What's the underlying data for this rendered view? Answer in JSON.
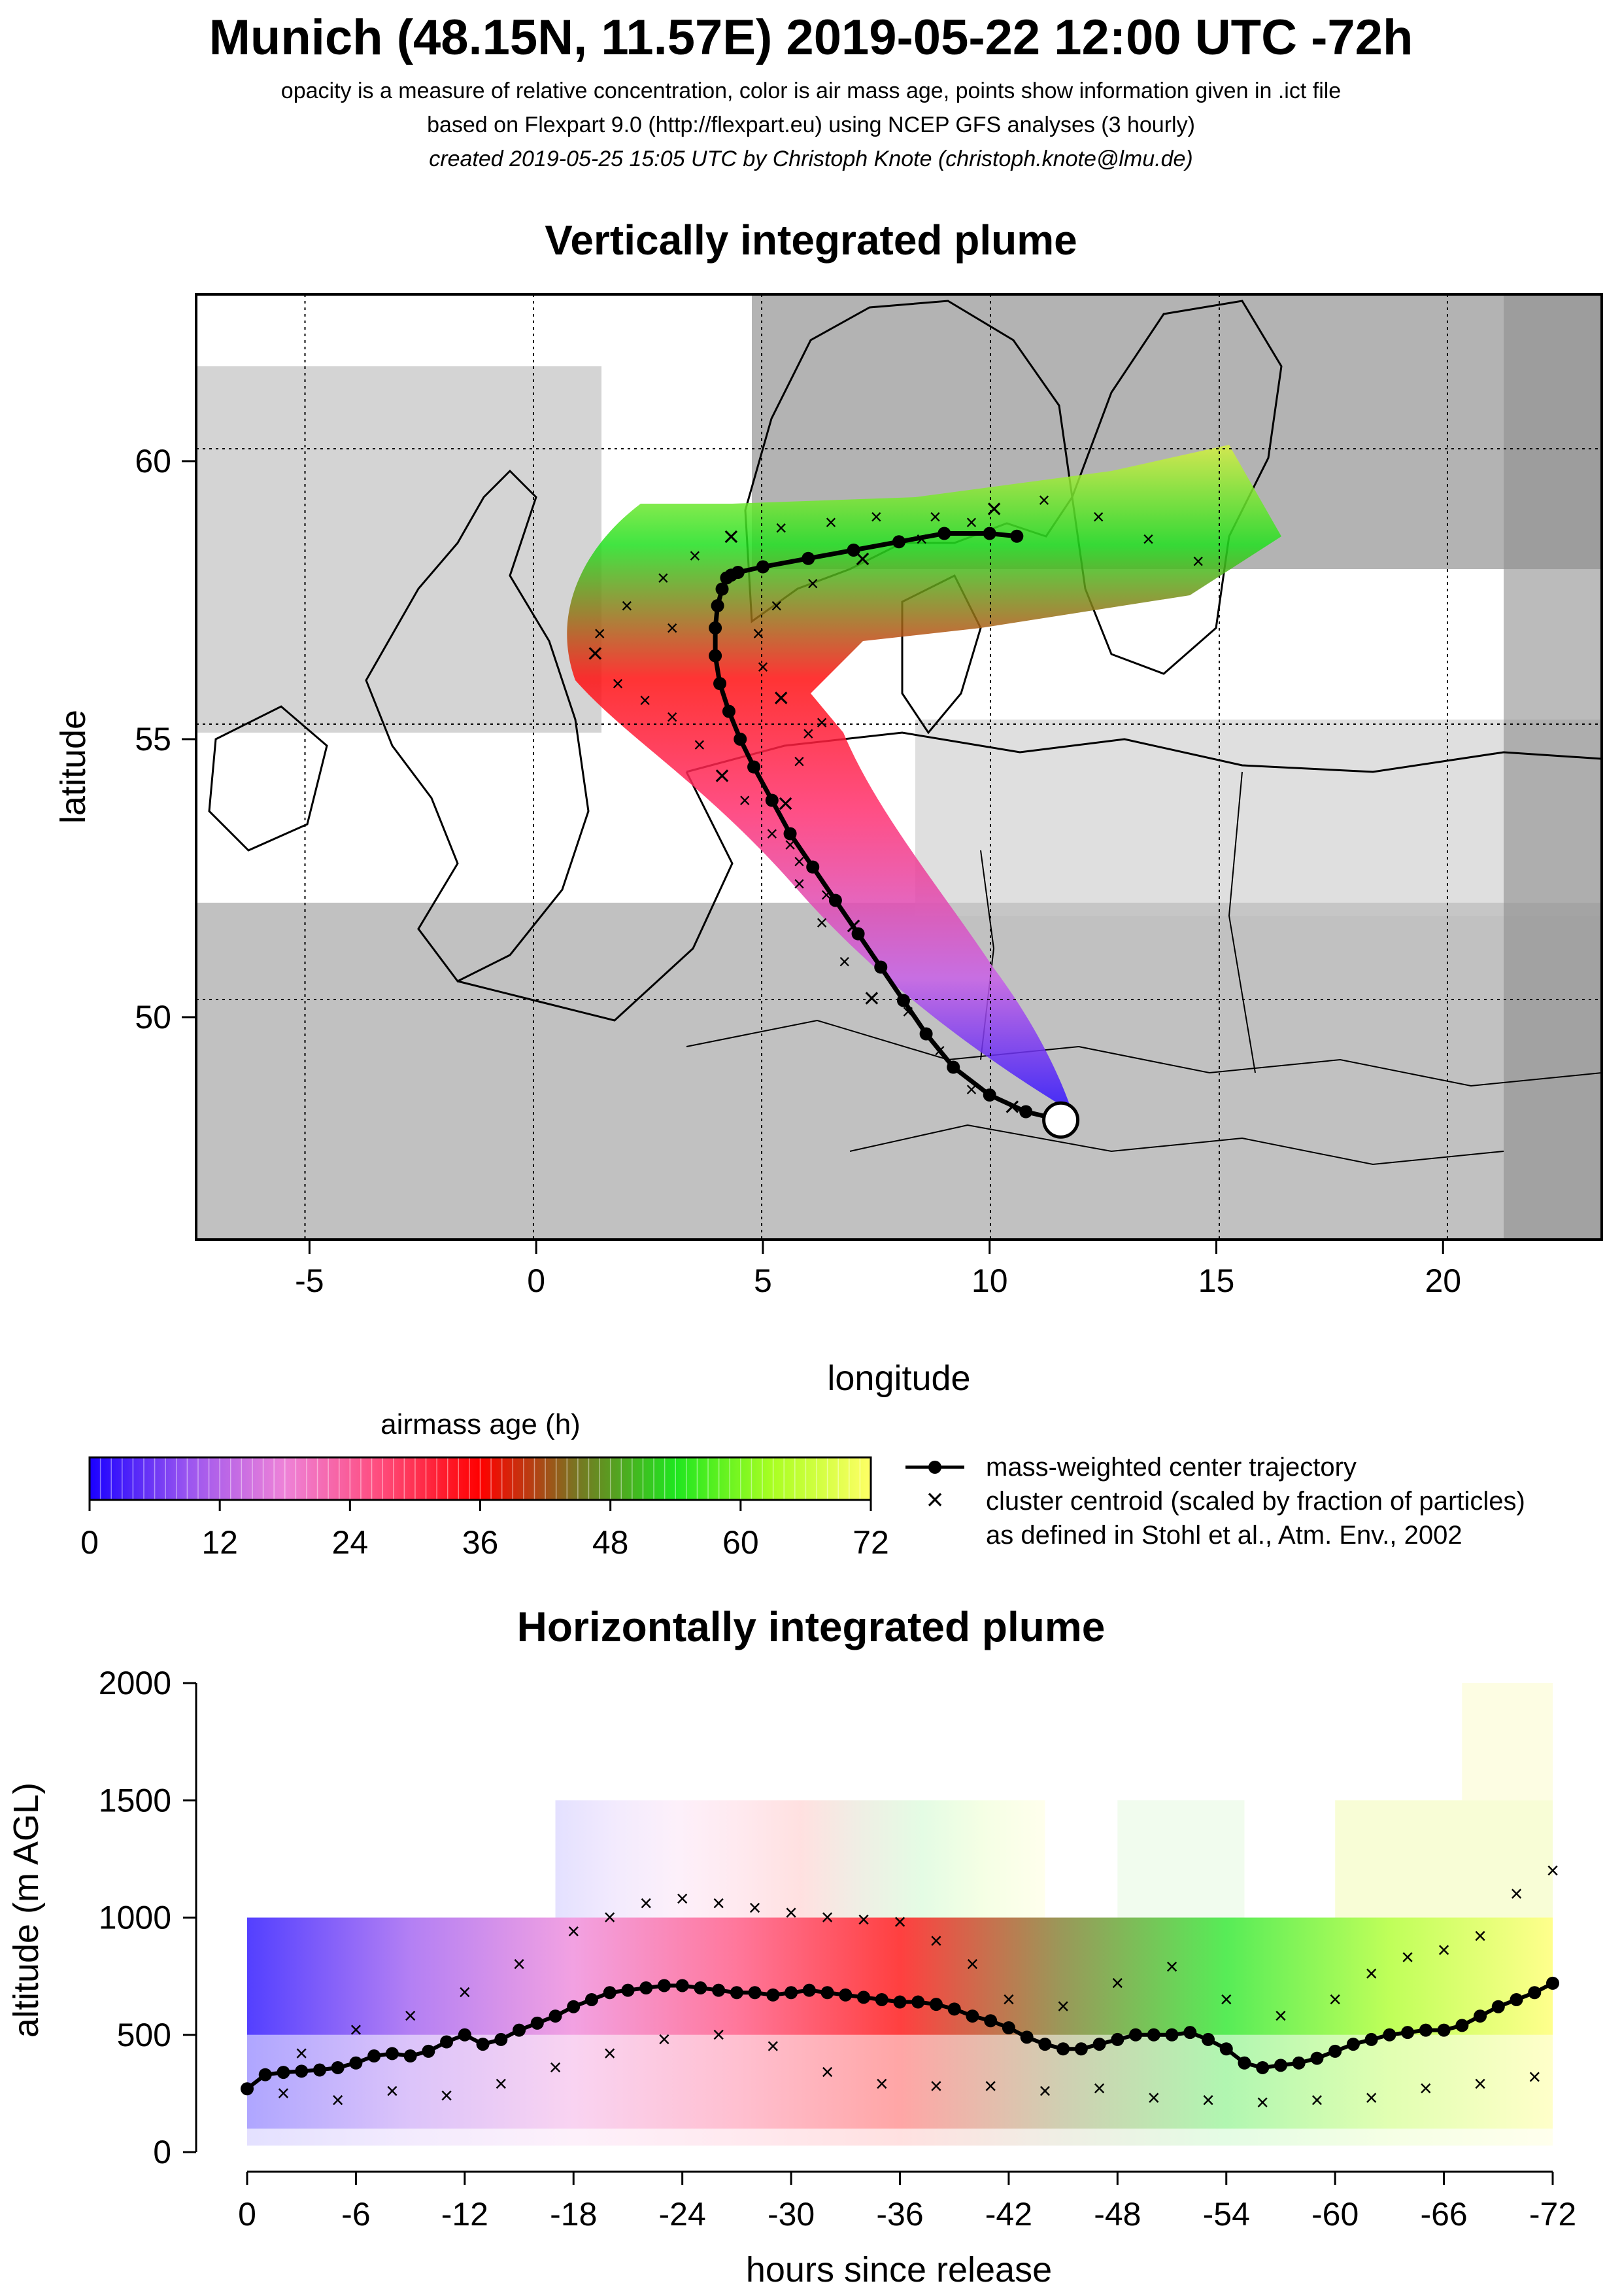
{
  "header": {
    "title": "Munich (48.15N, 11.57E) 2019-05-22 12:00 UTC -72h",
    "line1": "opacity is a measure of relative concentration, color is air mass age, points show information given in .ict file",
    "line2": "based on Flexpart 9.0 (http://flexpart.eu) using NCEP GFS analyses (3 hourly)",
    "line3": "created 2019-05-25 15:05 UTC by Christoph Knote (christoph.knote@lmu.de)"
  },
  "map_panel": {
    "title": "Vertically integrated plume",
    "xlabel": "longitude",
    "ylabel": "latitude"
  },
  "colorbar": {
    "title": "airmass age (h)",
    "ticks": [
      "0",
      "12",
      "24",
      "36",
      "48",
      "60",
      "72"
    ],
    "stops": [
      "#1a00ff",
      "#9a55f0",
      "#ee82d8",
      "#ff4a7a",
      "#ff0000",
      "#777722",
      "#1fe61f",
      "#aaff22",
      "#ffff66"
    ]
  },
  "legend": {
    "line": "mass-weighted center trajectory",
    "cross1": "cluster centroid (scaled by fraction of particles)",
    "cross2": "as defined in Stohl et al., Atm. Env., 2002"
  },
  "profile_panel": {
    "title": "Horizontally integrated plume",
    "xlabel": "hours since release",
    "ylabel": "altitude (m AGL)"
  },
  "colors": {
    "trajectory": "#000000",
    "land": "#ffffff",
    "cloud": "#8a8a8a"
  },
  "chart_data": [
    {
      "type": "scatter",
      "title": "Vertically integrated plume",
      "xlabel": "longitude",
      "ylabel": "latitude",
      "xlim": [
        -7.5,
        23.5
      ],
      "ylim": [
        46.0,
        63.0
      ],
      "xticks": [
        "-5",
        "0",
        "5",
        "10",
        "15",
        "20"
      ],
      "yticks": [
        "50",
        "55",
        "60"
      ],
      "xtick_values": [
        -5,
        0,
        5,
        10,
        15,
        20
      ],
      "ytick_values": [
        50,
        55,
        60
      ],
      "grid": true,
      "release_point": {
        "lon": 11.57,
        "lat": 48.15
      },
      "center_trajectory": {
        "name": "mass-weighted center trajectory",
        "lon": [
          11.57,
          10.8,
          10.0,
          9.2,
          8.6,
          8.1,
          7.6,
          7.1,
          6.6,
          6.1,
          5.6,
          5.2,
          4.8,
          4.5,
          4.25,
          4.05,
          3.95,
          3.95,
          4.0,
          4.1,
          4.2,
          4.3,
          4.45,
          5.0,
          6.0,
          7.0,
          8.0,
          9.0,
          10.0,
          10.6
        ],
        "lat": [
          48.15,
          48.3,
          48.6,
          49.1,
          49.7,
          50.3,
          50.9,
          51.5,
          52.1,
          52.7,
          53.3,
          53.9,
          54.5,
          55.0,
          55.5,
          56.0,
          56.5,
          57.0,
          57.4,
          57.7,
          57.9,
          57.95,
          58.0,
          58.1,
          58.25,
          58.4,
          58.55,
          58.7,
          58.7,
          58.65
        ]
      },
      "cluster_centroids": {
        "name": "cluster centroid (scaled by fraction of particles)",
        "lon": [
          10.5,
          9.6,
          8.9,
          8.2,
          7.6,
          7.0,
          6.4,
          5.8,
          5.2,
          4.6,
          4.1,
          3.6,
          3.0,
          2.4,
          1.8,
          1.3,
          1.4,
          2.0,
          2.8,
          3.5,
          4.3,
          5.4,
          6.5,
          7.5,
          8.8,
          10.1,
          11.2,
          12.4,
          13.5,
          14.6,
          7.4,
          6.8,
          6.3,
          5.8,
          5.6,
          5.5,
          5.8,
          6.3,
          9.6,
          8.5,
          7.2,
          6.1,
          5.3,
          4.9,
          5.0,
          5.4,
          6.0,
          3.0
        ],
        "lat": [
          48.35,
          48.7,
          49.4,
          50.1,
          50.9,
          51.6,
          52.2,
          52.8,
          53.3,
          53.9,
          54.3,
          54.9,
          55.4,
          55.7,
          56.0,
          56.5,
          56.9,
          57.4,
          57.9,
          58.3,
          58.6,
          58.8,
          58.9,
          59.0,
          59.0,
          59.1,
          59.3,
          59.0,
          58.6,
          58.2,
          50.3,
          51.0,
          51.7,
          52.4,
          53.1,
          53.8,
          54.6,
          55.3,
          58.9,
          58.6,
          58.2,
          57.8,
          57.4,
          56.9,
          56.3,
          55.7,
          55.1,
          57.0
        ]
      }
    },
    {
      "type": "line",
      "title": "Horizontally integrated plume",
      "xlabel": "hours since release",
      "ylabel": "altitude (m AGL)",
      "xlim": [
        0,
        -72
      ],
      "ylim": [
        0,
        2000
      ],
      "xticks": [
        "0",
        "-6",
        "-12",
        "-18",
        "-24",
        "-30",
        "-36",
        "-42",
        "-48",
        "-54",
        "-60",
        "-66",
        "-72"
      ],
      "xtick_values": [
        0,
        -6,
        -12,
        -18,
        -24,
        -30,
        -36,
        -42,
        -48,
        -54,
        -60,
        -66,
        -72
      ],
      "yticks": [
        "0",
        "500",
        "1000",
        "1500",
        "2000"
      ],
      "ytick_values": [
        0,
        500,
        1000,
        1500,
        2000
      ],
      "center_altitude": {
        "name": "mass-weighted center trajectory",
        "x": [
          0,
          -1,
          -2,
          -3,
          -4,
          -5,
          -6,
          -7,
          -8,
          -9,
          -10,
          -11,
          -12,
          -13,
          -14,
          -15,
          -16,
          -17,
          -18,
          -19,
          -20,
          -21,
          -22,
          -23,
          -24,
          -25,
          -26,
          -27,
          -28,
          -29,
          -30,
          -31,
          -32,
          -33,
          -34,
          -35,
          -36,
          -37,
          -38,
          -39,
          -40,
          -41,
          -42,
          -43,
          -44,
          -45,
          -46,
          -47,
          -48,
          -49,
          -50,
          -51,
          -52,
          -53,
          -54,
          -55,
          -56,
          -57,
          -58,
          -59,
          -60,
          -61,
          -62,
          -63,
          -64,
          -65,
          -66,
          -67,
          -68,
          -69,
          -70,
          -71,
          -72
        ],
        "y": [
          270,
          330,
          340,
          345,
          350,
          360,
          380,
          410,
          420,
          410,
          430,
          470,
          500,
          460,
          480,
          520,
          550,
          580,
          620,
          650,
          680,
          690,
          700,
          710,
          710,
          700,
          690,
          680,
          680,
          670,
          680,
          690,
          680,
          670,
          660,
          650,
          640,
          640,
          630,
          610,
          580,
          560,
          530,
          490,
          460,
          440,
          440,
          460,
          480,
          500,
          500,
          500,
          510,
          480,
          440,
          380,
          360,
          370,
          380,
          400,
          430,
          460,
          480,
          500,
          510,
          520,
          520,
          540,
          580,
          620,
          650,
          680,
          720
        ]
      },
      "upper_centroids": {
        "x": [
          -3,
          -6,
          -9,
          -12,
          -15,
          -18,
          -20,
          -22,
          -24,
          -26,
          -28,
          -30,
          -32,
          -34,
          -36,
          -38,
          -40,
          -42,
          -45,
          -48,
          -51,
          -54,
          -57,
          -60,
          -62,
          -64,
          -66,
          -68,
          -70,
          -72
        ],
        "y": [
          420,
          520,
          580,
          680,
          800,
          940,
          1000,
          1060,
          1080,
          1060,
          1040,
          1020,
          1000,
          990,
          980,
          900,
          800,
          650,
          620,
          720,
          790,
          650,
          580,
          650,
          760,
          830,
          860,
          920,
          1100,
          1200
        ]
      },
      "lower_centroids": {
        "x": [
          -2,
          -5,
          -8,
          -11,
          -14,
          -17,
          -20,
          -23,
          -26,
          -29,
          -32,
          -35,
          -38,
          -41,
          -44,
          -47,
          -50,
          -53,
          -56,
          -59,
          -62,
          -65,
          -68,
          -71
        ],
        "y": [
          250,
          220,
          260,
          240,
          290,
          360,
          420,
          480,
          500,
          450,
          340,
          290,
          280,
          280,
          260,
          270,
          230,
          220,
          210,
          220,
          230,
          270,
          290,
          320
        ]
      }
    }
  ]
}
